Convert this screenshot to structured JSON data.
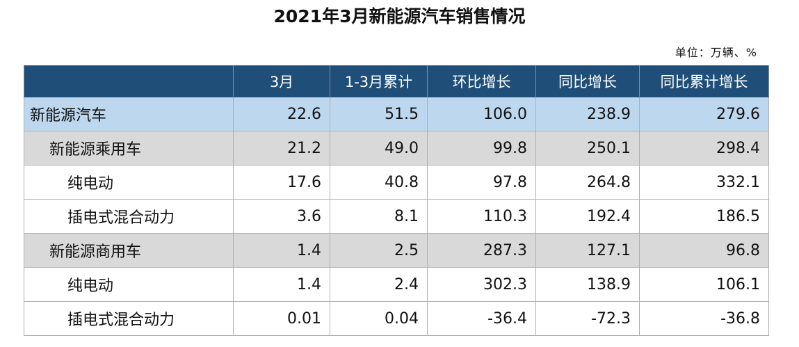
{
  "title": "2021年3月新能源汽车销售情况",
  "unit": "单位：万辆、%",
  "table": {
    "headers": [
      "",
      "3月",
      "1-3月累计",
      "环比增长",
      "同比增长",
      "同比累计增长"
    ],
    "rows": [
      {
        "name": "新能源汽车",
        "level": 0,
        "values": [
          "22.6",
          "51.5",
          "106.0",
          "238.9",
          "279.6"
        ]
      },
      {
        "name": "新能源乘用车",
        "level": 1,
        "values": [
          "21.2",
          "49.0",
          "99.8",
          "250.1",
          "298.4"
        ]
      },
      {
        "name": "纯电动",
        "level": 2,
        "values": [
          "17.6",
          "40.8",
          "97.8",
          "264.8",
          "332.1"
        ]
      },
      {
        "name": "插电式混合动力",
        "level": 2,
        "values": [
          "3.6",
          "8.1",
          "110.3",
          "192.4",
          "186.5"
        ]
      },
      {
        "name": "新能源商用车",
        "level": 1,
        "values": [
          "1.4",
          "2.5",
          "287.3",
          "127.1",
          "96.8"
        ]
      },
      {
        "name": "纯电动",
        "level": 2,
        "values": [
          "1.4",
          "2.4",
          "302.3",
          "138.9",
          "106.1"
        ]
      },
      {
        "name": "插电式混合动力",
        "level": 2,
        "values": [
          "0.01",
          "0.04",
          "-36.4",
          "-72.3",
          "-36.8"
        ]
      }
    ]
  },
  "colors": {
    "header_bg": "#1f4e79",
    "level0_bg": "#bdd7ee",
    "level1_bg": "#d9d9d9",
    "level2_bg": "#ffffff"
  }
}
